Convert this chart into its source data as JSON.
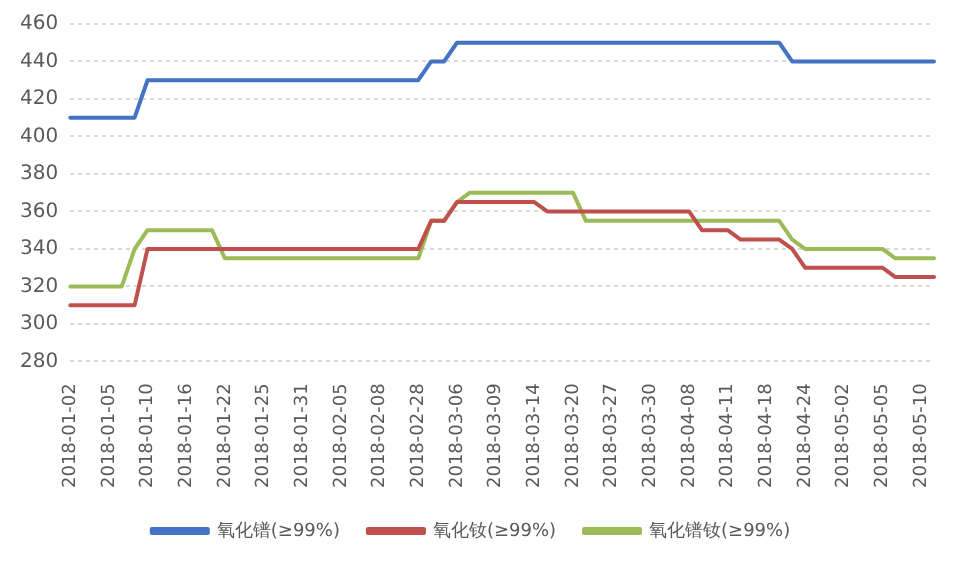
{
  "chart_data": {
    "type": "line",
    "categories": [
      "2018-01-02",
      null,
      null,
      "2018-01-05",
      null,
      null,
      "2018-01-10",
      null,
      null,
      "2018-01-16",
      null,
      null,
      "2018-01-22",
      null,
      null,
      "2018-01-25",
      null,
      null,
      "2018-01-31",
      null,
      null,
      "2018-02-05",
      null,
      null,
      "2018-02-08",
      null,
      null,
      "2018-02-28",
      null,
      null,
      "2018-03-06",
      null,
      null,
      "2018-03-09",
      null,
      null,
      "2018-03-14",
      null,
      null,
      "2018-03-20",
      null,
      null,
      "2018-03-27",
      null,
      null,
      "2018-03-30",
      null,
      null,
      "2018-04-08",
      null,
      null,
      "2018-04-11",
      null,
      null,
      "2018-04-18",
      null,
      null,
      "2018-04-24",
      null,
      null,
      "2018-05-02",
      null,
      null,
      "2018-05-05",
      null,
      null,
      "2018-05-10",
      null
    ],
    "series": [
      {
        "name": "氧化镨(≥99%)",
        "color": "#4472c4",
        "values": [
          410,
          410,
          410,
          410,
          410,
          410,
          430,
          430,
          430,
          430,
          430,
          430,
          430,
          430,
          430,
          430,
          430,
          430,
          430,
          430,
          430,
          430,
          430,
          430,
          430,
          430,
          430,
          430,
          440,
          440,
          450,
          450,
          450,
          450,
          450,
          450,
          450,
          450,
          450,
          450,
          450,
          450,
          450,
          450,
          450,
          450,
          450,
          450,
          450,
          450,
          450,
          450,
          450,
          450,
          450,
          450,
          440,
          440,
          440,
          440,
          440,
          440,
          440,
          440,
          440,
          440,
          440,
          440
        ]
      },
      {
        "name": "氧化钕(≥99%)",
        "color": "#c0504d",
        "values": [
          310,
          310,
          310,
          310,
          310,
          310,
          340,
          340,
          340,
          340,
          340,
          340,
          340,
          340,
          340,
          340,
          340,
          340,
          340,
          340,
          340,
          340,
          340,
          340,
          340,
          340,
          340,
          340,
          355,
          355,
          365,
          365,
          365,
          365,
          365,
          365,
          365,
          360,
          360,
          360,
          360,
          360,
          360,
          360,
          360,
          360,
          360,
          360,
          360,
          350,
          350,
          350,
          345,
          345,
          345,
          345,
          340,
          330,
          330,
          330,
          330,
          330,
          330,
          330,
          325,
          325,
          325,
          325
        ]
      },
      {
        "name": "氧化镨钕(≥99%)",
        "color": "#9bbb59",
        "values": [
          320,
          320,
          320,
          320,
          320,
          340,
          350,
          350,
          350,
          350,
          350,
          350,
          335,
          335,
          335,
          335,
          335,
          335,
          335,
          335,
          335,
          335,
          335,
          335,
          335,
          335,
          335,
          335,
          355,
          355,
          365,
          370,
          370,
          370,
          370,
          370,
          370,
          370,
          370,
          370,
          355,
          355,
          355,
          355,
          355,
          355,
          355,
          355,
          355,
          355,
          355,
          355,
          355,
          355,
          355,
          355,
          345,
          340,
          340,
          340,
          340,
          340,
          340,
          340,
          335,
          335,
          335,
          335
        ]
      }
    ],
    "ylim": [
      280,
      460
    ],
    "yticks": [
      280,
      300,
      320,
      340,
      360,
      380,
      400,
      420,
      440,
      460
    ],
    "grid": "y",
    "legend": "bottom",
    "marker": "none",
    "line_style": "solid"
  }
}
